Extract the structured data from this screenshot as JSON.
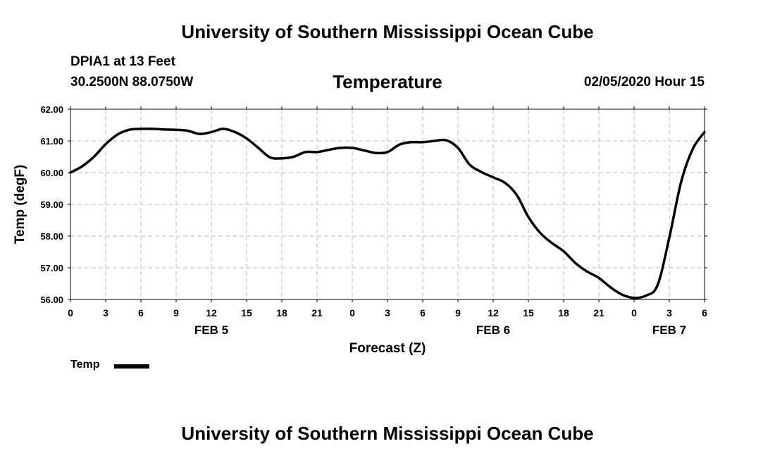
{
  "header": {
    "title": "University of Southern Mississippi Ocean Cube",
    "station": "DPIA1 at 13 Feet",
    "coords": "30.2500N 88.0750W",
    "chart_title": "Temperature",
    "issued": "02/05/2020 Hour 15"
  },
  "footer": {
    "title": "University of Southern Mississippi Ocean Cube"
  },
  "legend": {
    "label": "Temp",
    "color": "#000000"
  },
  "chart_data": {
    "type": "line",
    "title": "Temperature",
    "xlabel": "Forecast (Z)",
    "ylabel": "Temp (degF)",
    "x_unit": "hours from 2020-02-05 00Z",
    "xlim": [
      0,
      54
    ],
    "ylim": [
      56,
      62
    ],
    "grid": true,
    "x_ticks": [
      {
        "x": 0,
        "label": "0"
      },
      {
        "x": 3,
        "label": "3"
      },
      {
        "x": 6,
        "label": "6"
      },
      {
        "x": 9,
        "label": "9"
      },
      {
        "x": 12,
        "label": "12"
      },
      {
        "x": 15,
        "label": "15"
      },
      {
        "x": 18,
        "label": "18"
      },
      {
        "x": 21,
        "label": "21"
      },
      {
        "x": 24,
        "label": "0"
      },
      {
        "x": 27,
        "label": "3"
      },
      {
        "x": 30,
        "label": "6"
      },
      {
        "x": 33,
        "label": "9"
      },
      {
        "x": 36,
        "label": "12"
      },
      {
        "x": 39,
        "label": "15"
      },
      {
        "x": 42,
        "label": "18"
      },
      {
        "x": 45,
        "label": "21"
      },
      {
        "x": 48,
        "label": "0"
      },
      {
        "x": 51,
        "label": "3"
      },
      {
        "x": 54,
        "label": "6"
      }
    ],
    "y_ticks": [
      "56.00",
      "57.00",
      "58.00",
      "59.00",
      "60.00",
      "61.00",
      "62.00"
    ],
    "day_labels": [
      {
        "x": 12,
        "label": "FEB 5"
      },
      {
        "x": 36,
        "label": "FEB 6"
      },
      {
        "x": 51,
        "label": "FEB 7"
      }
    ],
    "series": [
      {
        "name": "Temp",
        "color": "#000000",
        "x": [
          0,
          1,
          2,
          3,
          4,
          5,
          6,
          7,
          8,
          9,
          10,
          11,
          12,
          13,
          14,
          15,
          16,
          17,
          18,
          19,
          20,
          21,
          22,
          23,
          24,
          25,
          26,
          27,
          28,
          29,
          30,
          31,
          32,
          33,
          34,
          35,
          36,
          37,
          38,
          39,
          40,
          41,
          42,
          43,
          44,
          45,
          46,
          47,
          48,
          49,
          50,
          51,
          52,
          53,
          54
        ],
        "y": [
          60.0,
          60.2,
          60.5,
          60.9,
          61.2,
          61.35,
          61.38,
          61.38,
          61.36,
          61.35,
          61.32,
          61.22,
          61.28,
          61.38,
          61.28,
          61.08,
          60.78,
          60.48,
          60.45,
          60.5,
          60.65,
          60.65,
          60.72,
          60.78,
          60.78,
          60.7,
          60.62,
          60.65,
          60.88,
          60.96,
          60.96,
          61.0,
          61.02,
          60.78,
          60.25,
          60.02,
          59.85,
          59.68,
          59.3,
          58.6,
          58.1,
          57.78,
          57.52,
          57.15,
          56.88,
          56.68,
          56.38,
          56.15,
          56.05,
          56.12,
          56.45,
          57.95,
          59.7,
          60.75,
          61.28
        ]
      }
    ]
  }
}
